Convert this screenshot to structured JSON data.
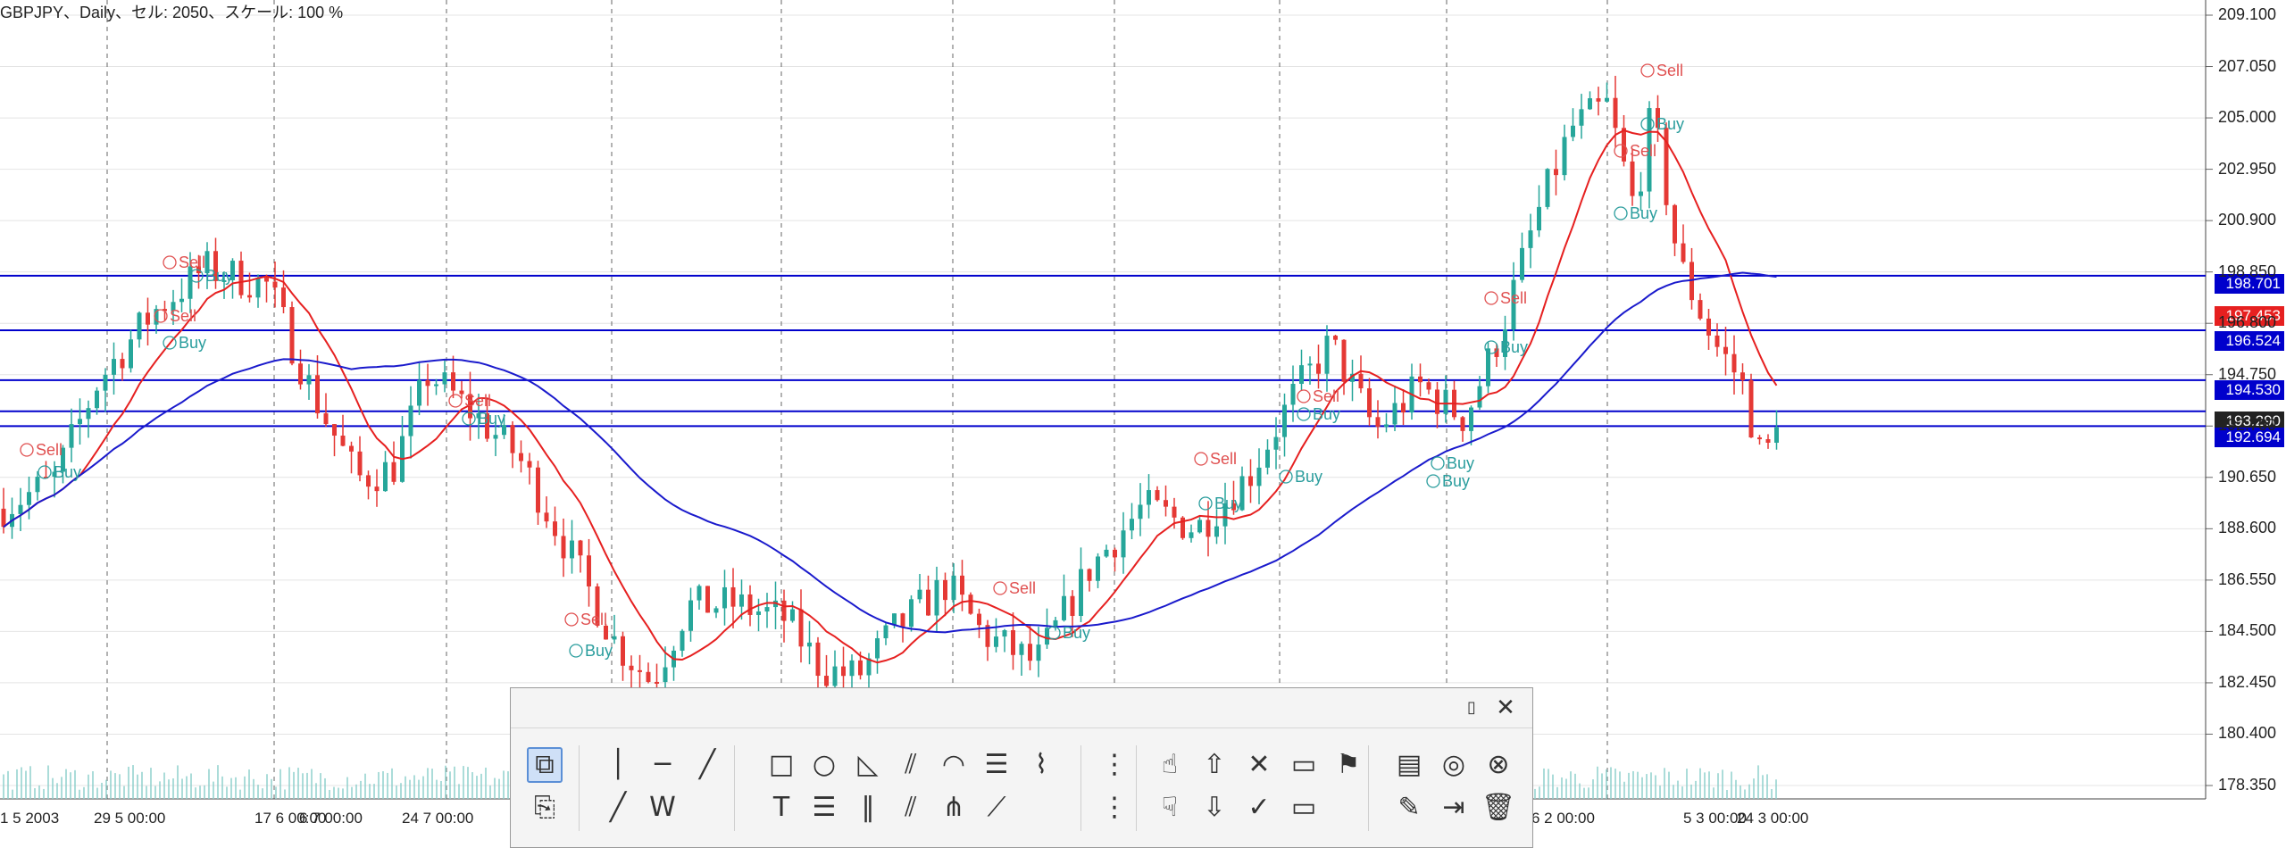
{
  "header": {
    "title": "GBPJPY、Daily、セル: 2050、スケール: 100 %"
  },
  "price_axis": {
    "labels": [
      "209.100",
      "207.050",
      "205.000",
      "202.950",
      "200.900",
      "198.850",
      "196.800",
      "194.750",
      "192.700",
      "190.650",
      "188.600",
      "186.550",
      "184.500",
      "182.450",
      "180.400",
      "178.350"
    ]
  },
  "time_axis": {
    "labels": [
      "1 5 2003",
      "29 5 00:00",
      "17 6 00:00",
      "6 7 00:00",
      "24 7 00:00",
      "6 2 00:00",
      "5 3 00:00",
      "24 3 00:00"
    ]
  },
  "price_tags": [
    {
      "label": "198.701",
      "color": "#0000cc",
      "text_color": "#ffffff"
    },
    {
      "label": "197.453",
      "color": "#e62020",
      "text_color": "#ffffff"
    },
    {
      "label": "196.524",
      "color": "#0000cc",
      "text_color": "#ffffff"
    },
    {
      "label": "194.530",
      "color": "#0000cc",
      "text_color": "#ffffff"
    },
    {
      "label": "193.290",
      "color": "#222222",
      "text_color": "#ffffff"
    },
    {
      "label": "192.694",
      "color": "#0000cc",
      "text_color": "#ffffff"
    }
  ],
  "signals": {
    "buy_label": "Buy",
    "sell_label": "Sell"
  },
  "colors": {
    "candle_up": "#26a69a",
    "candle_down": "#e53935",
    "ma_fast": "#e62020",
    "ma_slow": "#1a1acc",
    "hline": "#0000cc",
    "buy": "#2a9d9d",
    "sell": "#e05050",
    "grid": "#9a9a9a"
  },
  "toolbar": {
    "title_icons": [
      "restore-icon",
      "close-icon"
    ],
    "row1": [
      "select-tool-icon",
      "vertical-line-icon",
      "horizontal-line-icon",
      "trend-line-icon",
      "rectangle-icon",
      "ellipse-icon",
      "triangle-icon",
      "fibo-fan-icon",
      "fibo-arc-icon",
      "fibo-retracement-icon",
      "zigzag-icon",
      "channel-icon",
      "thumbs-up-icon",
      "arrow-up-icon",
      "cross-icon",
      "price-label-icon",
      "flag-icon",
      "document-icon",
      "target-icon",
      "cancel-icon"
    ],
    "row2": [
      "copy-icon",
      "pen-line-icon",
      "elliott-wave-icon",
      "text-icon",
      "equidistant-channel-icon",
      "parallel-lines-icon",
      "fibo-time-icon",
      "andrews-pitchfork-icon",
      "gann-fan-icon",
      "cycle-lines-icon",
      "thumbs-down-icon",
      "arrow-down-icon",
      "check-icon",
      "price-label-right-icon",
      "edit-icon",
      "export-icon",
      "trash-icon"
    ]
  }
}
